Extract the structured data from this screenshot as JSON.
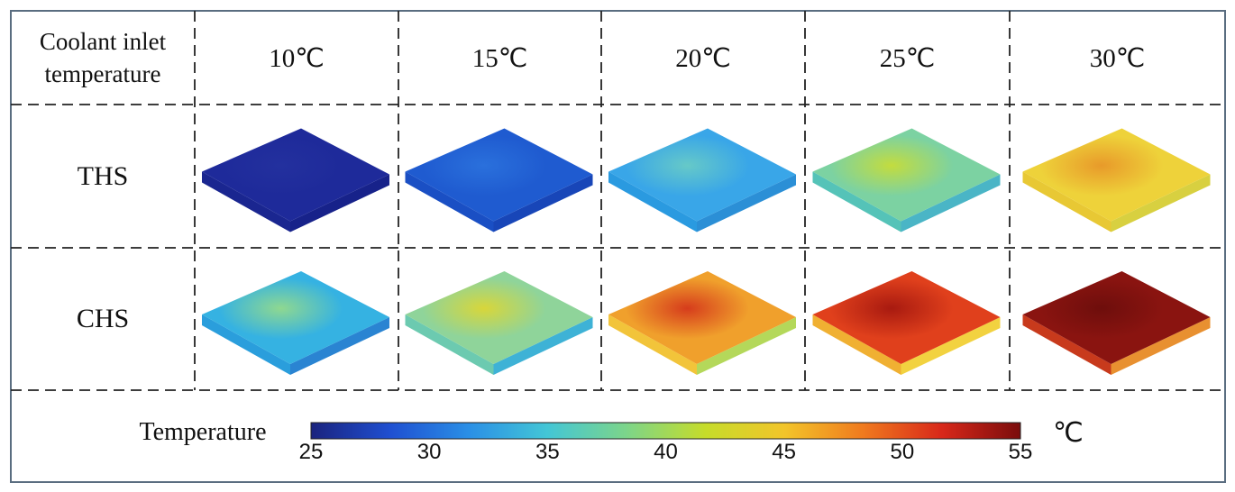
{
  "header": {
    "first_cell_lines": [
      "Coolant inlet",
      "temperature"
    ],
    "temperatures": [
      "10℃",
      "15℃",
      "20℃",
      "25℃",
      "30℃"
    ]
  },
  "rows": [
    {
      "label": "THS",
      "plates": [
        {
          "top": "#1e2a9a",
          "top_hot": "#23309e",
          "side_front": "#1a2690",
          "side_right": "#17228a"
        },
        {
          "top": "#1f5bd0",
          "top_hot": "#2a70dc",
          "side_front": "#1a4fc4",
          "side_right": "#1846b8"
        },
        {
          "top": "#39a6e8",
          "top_hot": "#66c9c8",
          "side_front": "#2a9ae0",
          "side_right": "#2b8fd6"
        },
        {
          "top": "#7cd2a2",
          "top_hot": "#c3dc3e",
          "side_front": "#55c3b8",
          "side_right": "#4ab5c6"
        },
        {
          "top": "#eed23a",
          "top_hot": "#e89a2a",
          "side_front": "#e8c834",
          "side_right": "#d8d040"
        }
      ]
    },
    {
      "label": "CHS",
      "plates": [
        {
          "top": "#35b2e2",
          "top_hot": "#8fd890",
          "side_front": "#2a9edc",
          "side_right": "#2a84d2"
        },
        {
          "top": "#8fd49a",
          "top_hot": "#d8d63a",
          "side_front": "#6ccab0",
          "side_right": "#3eb2d6"
        },
        {
          "top": "#f0a02c",
          "top_hot": "#d63c1c",
          "side_front": "#f2c43a",
          "side_right": "#b4d85a"
        },
        {
          "top": "#e0401c",
          "top_hot": "#a81a10",
          "side_front": "#f0b032",
          "side_right": "#f2d240"
        },
        {
          "top": "#8a1410",
          "top_hot": "#6e0e0c",
          "side_front": "#c83a1c",
          "side_right": "#e89030"
        }
      ]
    }
  ],
  "legend": {
    "title": "Temperature",
    "unit": "℃",
    "min": 25,
    "max": 55,
    "ticks": [
      25,
      30,
      35,
      40,
      45,
      50,
      55
    ],
    "colormap": [
      "#1a237e",
      "#1f4fd1",
      "#2a8fe6",
      "#43c6d6",
      "#7cd58a",
      "#c6dc2a",
      "#f2c52a",
      "#f07a1e",
      "#d8281a",
      "#7a0c0c"
    ]
  }
}
